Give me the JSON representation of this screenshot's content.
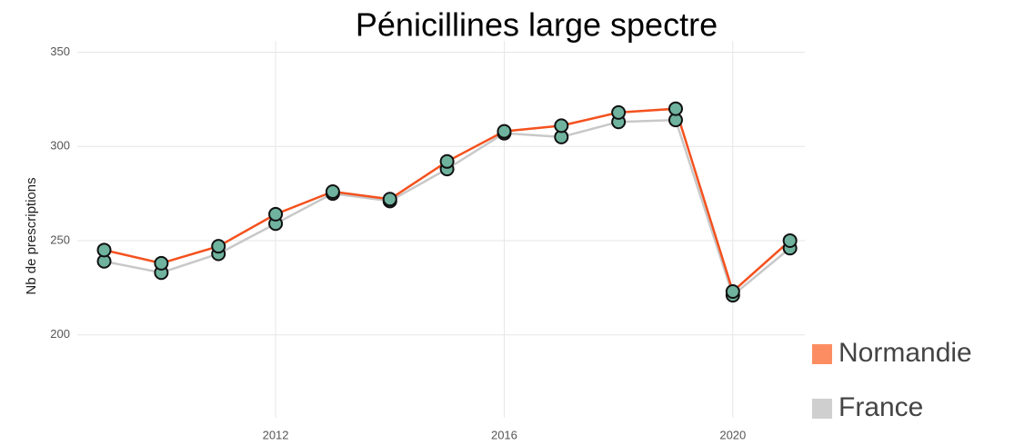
{
  "chart_data": {
    "type": "line",
    "title": "Pénicillines large spectre",
    "y_label": "Nb de prescriptions",
    "x": [
      2009,
      2010,
      2011,
      2012,
      2013,
      2014,
      2015,
      2016,
      2017,
      2018,
      2019,
      2020,
      2021
    ],
    "series": [
      {
        "name": "Normandie",
        "color": "#f4511e",
        "legend_color": "#fc8d62",
        "values": [
          245,
          238,
          247,
          264,
          276,
          272,
          292,
          308,
          311,
          318,
          320,
          223,
          250
        ]
      },
      {
        "name": "France",
        "color": "#c8c8c8",
        "legend_color": "#cfcfcf",
        "values": [
          239,
          233,
          243,
          259,
          275,
          271,
          288,
          307,
          305,
          313,
          314,
          221,
          246
        ]
      }
    ],
    "marker_color": "#6fb39e",
    "xlim": [
      2008.53,
      2021.26
    ],
    "xticks": [
      2012,
      2016,
      2020
    ],
    "ylim": [
      156,
      356
    ],
    "yticks": [
      200,
      250,
      300,
      350
    ],
    "grid": true,
    "legend_position": "right"
  }
}
